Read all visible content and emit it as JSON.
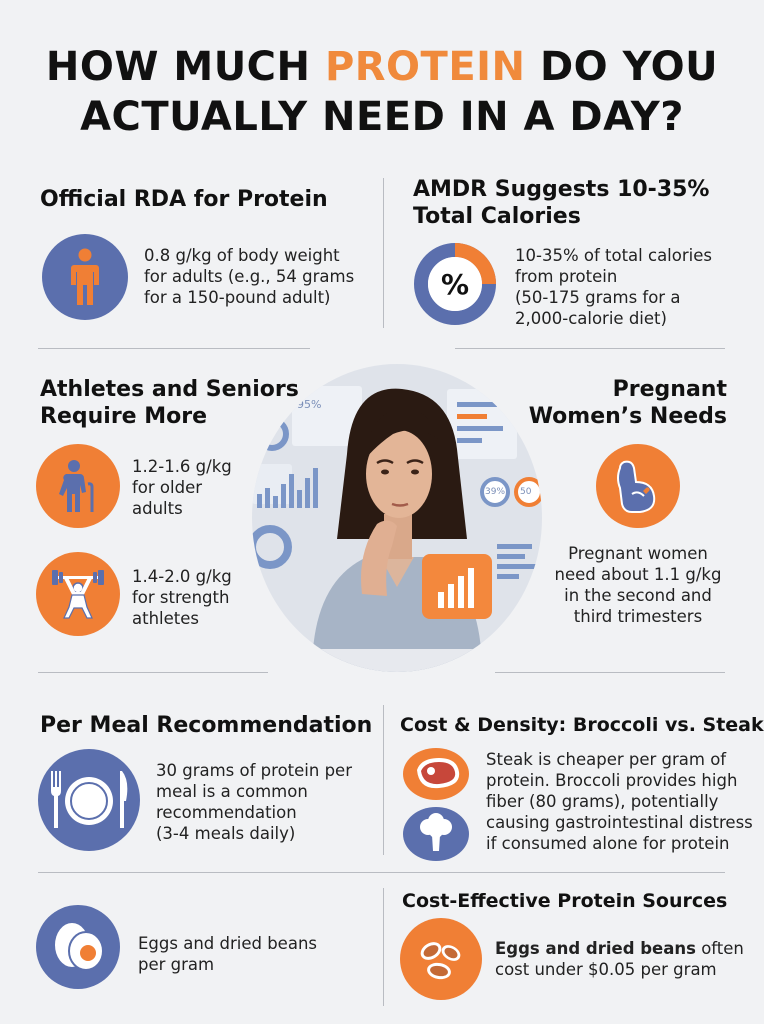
{
  "header": {
    "title_part1": "HOW MUCH ",
    "title_accent": "PROTEIN",
    "title_part2": " DO YOU",
    "title_line2": "ACTUALLY NEED IN A DAY?"
  },
  "colors": {
    "accent": "#f08a3c",
    "orange": "#f07f35",
    "blue": "#5b6fad",
    "background": "#f1f2f4"
  },
  "rda": {
    "heading": "Official RDA for Protein",
    "icon": "person-icon",
    "text_lines": [
      "0.8 g/kg of body weight",
      "for adults (e.g., 54 grams",
      "for a 150-pound adult)"
    ]
  },
  "amdr": {
    "heading_lines": [
      "AMDR Suggests 10-35%",
      "Total Calories"
    ],
    "icon": "percent-donut-icon",
    "icon_symbol": "%",
    "text_lines": [
      "10-35% of total calories",
      "from protein",
      "(50-175 grams for a",
      "2,000-calorie diet)"
    ]
  },
  "athletes": {
    "heading_lines": [
      "Athletes and Seniors",
      "Require More"
    ],
    "older": {
      "icon": "elderly-person-icon",
      "text_lines": [
        "1.2-1.6 g/kg",
        "for older",
        "adults"
      ]
    },
    "strength": {
      "icon": "weightlifter-icon",
      "text_lines": [
        "1.4-2.0 g/kg",
        "for strength",
        "athletes"
      ]
    }
  },
  "pregnant": {
    "heading_lines": [
      "Pregnant",
      "Women’s Needs"
    ],
    "icon": "pregnant-woman-icon",
    "text_lines": [
      "Pregnant women",
      "need about 1.1 g/kg",
      "in the second and",
      "third trimesters"
    ]
  },
  "photo": {
    "icon": "woman-thinking-photo",
    "dashboard_labels": [
      "95%",
      "39%",
      "50"
    ]
  },
  "per_meal": {
    "heading": "Per Meal Recommendation",
    "icon": "plate-fork-knife-icon",
    "text_lines": [
      "30 grams of protein per",
      "meal is a common",
      "recommendation",
      "(3-4 meals daily)"
    ]
  },
  "cost_density": {
    "heading": "Cost & Density: Broccoli vs. Steak",
    "icons": [
      "steak-icon",
      "broccoli-icon"
    ],
    "text_lines": [
      "Steak is cheaper per gram of",
      "protein. Broccoli provides high",
      "fiber (80 grams), potentially",
      "causing gastrointestinal distress",
      "if consumed alone for protein"
    ]
  },
  "eggs": {
    "icon": "egg-icon",
    "text_lines": [
      "Eggs and dried beans",
      "per gram"
    ]
  },
  "cost_effective": {
    "heading": "Cost-Effective Protein Sources",
    "icon": "beans-icon",
    "text_bold": "Eggs and dried beans",
    "text_rest": " often",
    "text_line2": "cost under $0.05 per gram"
  }
}
